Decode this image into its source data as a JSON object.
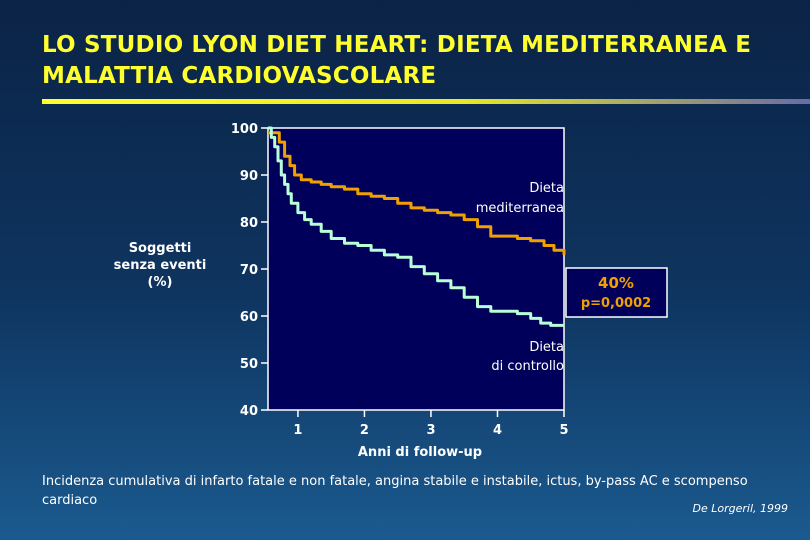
{
  "title": {
    "line1": "LO STUDIO LYON DIET HEART: DIETA MEDITERRANEA E",
    "line2": "MALATTIA CARDIOVASCOLARE"
  },
  "caption": "Incidenza cumulativa di infarto fatale e non fatale, angina stabile e instabile, ictus, by-pass AC e scompenso cardiaco",
  "source": "De Lorgeril, 1999",
  "colors": {
    "title": "#ffff2e",
    "plot_bg": "#00005a",
    "mediterranean": "#f0a000",
    "control": "#b8ffd8",
    "box_text": "#f0a000"
  },
  "chart_data": {
    "type": "line",
    "xlabel": "Anni di follow-up",
    "ylabel_lines": [
      "Soggetti",
      "senza eventi",
      "(%)"
    ],
    "xlim": [
      0.55,
      5
    ],
    "ylim": [
      40,
      100
    ],
    "xticks": [
      1,
      2,
      3,
      4,
      5
    ],
    "yticks": [
      40,
      50,
      60,
      70,
      80,
      90,
      100
    ],
    "grid": false,
    "series": [
      {
        "name_lines": [
          "Dieta",
          "mediterranea"
        ],
        "x": [
          0.55,
          0.62,
          0.72,
          0.8,
          0.88,
          0.95,
          1.05,
          1.2,
          1.35,
          1.5,
          1.7,
          1.9,
          2.1,
          2.3,
          2.5,
          2.7,
          2.9,
          3.1,
          3.3,
          3.5,
          3.7,
          3.9,
          4.1,
          4.3,
          4.5,
          4.7,
          4.85,
          5.0
        ],
        "y": [
          99,
          99,
          97,
          94,
          92,
          90,
          89,
          88.5,
          88,
          87.5,
          87,
          86,
          85.5,
          85,
          84,
          83,
          82.5,
          82,
          81.5,
          80.5,
          79,
          77,
          77,
          76.5,
          76,
          75,
          74,
          73
        ]
      },
      {
        "name_lines": [
          "Dieta",
          "di controllo"
        ],
        "x": [
          0.55,
          0.6,
          0.65,
          0.7,
          0.75,
          0.8,
          0.85,
          0.9,
          1.0,
          1.1,
          1.2,
          1.35,
          1.5,
          1.7,
          1.9,
          2.1,
          2.3,
          2.5,
          2.7,
          2.9,
          3.1,
          3.3,
          3.5,
          3.7,
          3.9,
          4.1,
          4.3,
          4.5,
          4.65,
          4.8,
          5.0
        ],
        "y": [
          100,
          98,
          96,
          93,
          90,
          88,
          86,
          84,
          82,
          80.5,
          79.5,
          78,
          76.5,
          75.5,
          75,
          74,
          73,
          72.5,
          70.5,
          69,
          67.5,
          66,
          64,
          62,
          61,
          61,
          60.5,
          59.5,
          58.5,
          58,
          58
        ]
      }
    ],
    "annotation": {
      "line1": "40%",
      "line2": "p=0,0002"
    }
  }
}
